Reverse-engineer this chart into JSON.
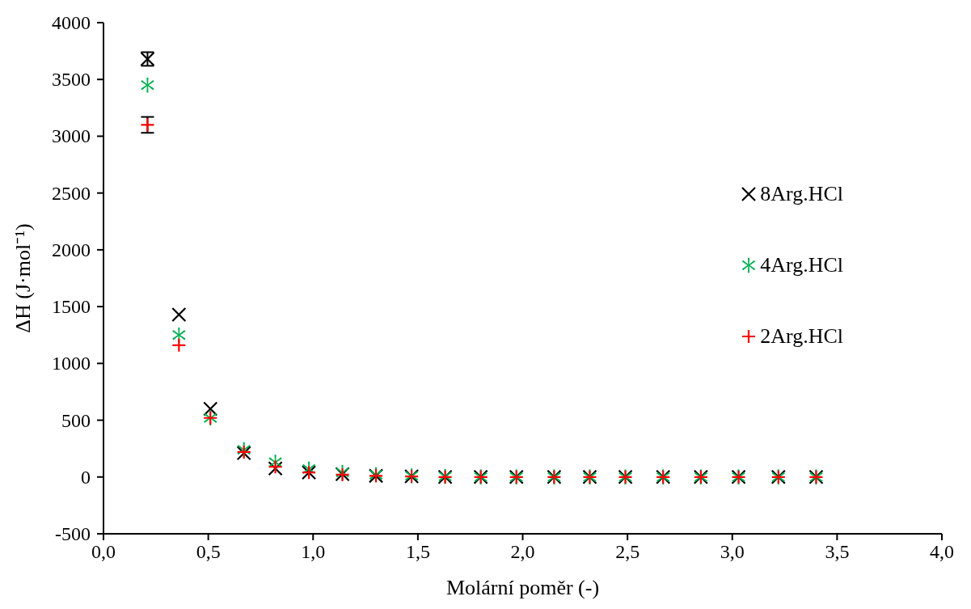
{
  "chart_data": {
    "type": "scatter",
    "xlabel": "Molární poměr (-)",
    "ylabel": "ΔH (J·mol⁻¹)",
    "x": [
      0.21,
      0.36,
      0.51,
      0.67,
      0.82,
      0.98,
      1.14,
      1.3,
      1.47,
      1.63,
      1.8,
      1.97,
      2.15,
      2.32,
      2.49,
      2.67,
      2.85,
      3.03,
      3.22,
      3.4
    ],
    "series": [
      {
        "name": "8Arg.HCl",
        "color": "#000000",
        "marker": "cross",
        "values": [
          3680,
          1430,
          600,
          210,
          75,
          40,
          25,
          10,
          5,
          0,
          0,
          0,
          0,
          0,
          0,
          0,
          0,
          0,
          0,
          0
        ],
        "errors": [
          60,
          null,
          null,
          null,
          null,
          null,
          null,
          null,
          null,
          null,
          null,
          null,
          null,
          null,
          null,
          null,
          null,
          null,
          null,
          null
        ]
      },
      {
        "name": "4Arg.HCl",
        "color": "#00b050",
        "marker": "star",
        "values": [
          3450,
          1250,
          520,
          240,
          130,
          70,
          40,
          20,
          10,
          5,
          0,
          0,
          0,
          0,
          0,
          0,
          0,
          0,
          0,
          0
        ]
      },
      {
        "name": "2Arg.HCl",
        "color": "#ff0000",
        "marker": "plus",
        "values": [
          3100,
          1160,
          520,
          220,
          90,
          40,
          20,
          10,
          5,
          0,
          0,
          0,
          0,
          0,
          0,
          0,
          0,
          0,
          0,
          0
        ],
        "errors": [
          70,
          null,
          null,
          null,
          null,
          null,
          null,
          null,
          null,
          null,
          null,
          null,
          null,
          null,
          null,
          null,
          null,
          null,
          null,
          null
        ]
      }
    ],
    "xlim": [
      0,
      4
    ],
    "xticks": [
      {
        "value": 0,
        "label": "0,0"
      },
      {
        "value": 0.5,
        "label": "0,5"
      },
      {
        "value": 1,
        "label": "1,0"
      },
      {
        "value": 1.5,
        "label": "1,5"
      },
      {
        "value": 2,
        "label": "2,0"
      },
      {
        "value": 2.5,
        "label": "2,5"
      },
      {
        "value": 3,
        "label": "3,0"
      },
      {
        "value": 3.5,
        "label": "3,5"
      },
      {
        "value": 4,
        "label": "4,0"
      }
    ],
    "ylim": [
      -500,
      4000
    ],
    "yticks": [
      -500,
      0,
      500,
      1000,
      1500,
      2000,
      2500,
      3000,
      3500,
      4000
    ],
    "grid": false,
    "legend": "right"
  }
}
